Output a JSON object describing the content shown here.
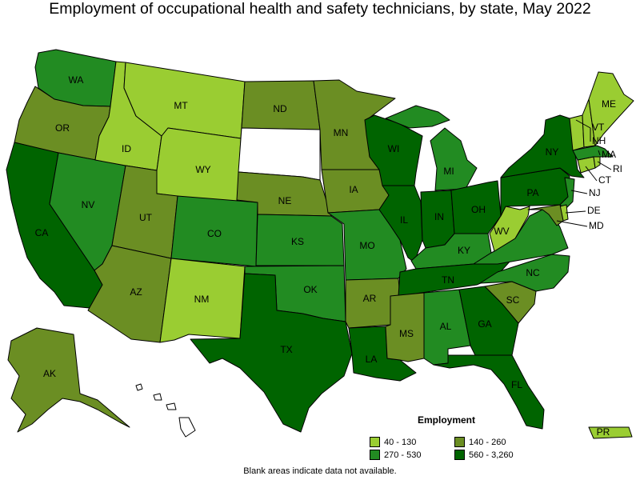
{
  "title": "Employment of occupational health and safety technicians, by state, May 2022",
  "footnote": "Blank areas indicate data not available.",
  "legend": {
    "title": "Employment",
    "items": [
      {
        "label": "40 - 130",
        "color": "#9acd32"
      },
      {
        "label": "140 - 260",
        "color": "#6b8e23"
      },
      {
        "label": "270 - 530",
        "color": "#228b22"
      },
      {
        "label": "560 - 3,260",
        "color": "#006400"
      }
    ]
  },
  "no_data_color": "#ffffff",
  "states": {
    "WA": {
      "label": "WA",
      "bin": "270 - 530"
    },
    "OR": {
      "label": "OR",
      "bin": "140 - 260"
    },
    "CA": {
      "label": "CA",
      "bin": "560 - 3,260"
    },
    "NV": {
      "label": "NV",
      "bin": "270 - 530"
    },
    "ID": {
      "label": "ID",
      "bin": "40 - 130"
    },
    "MT": {
      "label": "MT",
      "bin": "40 - 130"
    },
    "WY": {
      "label": "WY",
      "bin": "40 - 130"
    },
    "UT": {
      "label": "UT",
      "bin": "140 - 260"
    },
    "AZ": {
      "label": "AZ",
      "bin": "140 - 260"
    },
    "CO": {
      "label": "CO",
      "bin": "270 - 530"
    },
    "NM": {
      "label": "NM",
      "bin": "40 - 130"
    },
    "ND": {
      "label": "ND",
      "bin": "140 - 260"
    },
    "SD": {
      "label": "",
      "bin": null
    },
    "NE": {
      "label": "NE",
      "bin": "140 - 260"
    },
    "KS": {
      "label": "KS",
      "bin": "270 - 530"
    },
    "OK": {
      "label": "OK",
      "bin": "270 - 530"
    },
    "TX": {
      "label": "TX",
      "bin": "560 - 3,260"
    },
    "MN": {
      "label": "MN",
      "bin": "140 - 260"
    },
    "IA": {
      "label": "IA",
      "bin": "140 - 260"
    },
    "MO": {
      "label": "MO",
      "bin": "270 - 530"
    },
    "AR": {
      "label": "AR",
      "bin": "140 - 260"
    },
    "LA": {
      "label": "LA",
      "bin": "560 - 3,260"
    },
    "WI": {
      "label": "WI",
      "bin": "560 - 3,260"
    },
    "IL": {
      "label": "IL",
      "bin": "560 - 3,260"
    },
    "MI": {
      "label": "MI",
      "bin": "270 - 530"
    },
    "IN": {
      "label": "IN",
      "bin": "560 - 3,260"
    },
    "OH": {
      "label": "OH",
      "bin": "560 - 3,260"
    },
    "KY": {
      "label": "KY",
      "bin": "270 - 530"
    },
    "TN": {
      "label": "TN",
      "bin": "560 - 3,260"
    },
    "MS": {
      "label": "MS",
      "bin": "140 - 260"
    },
    "AL": {
      "label": "AL",
      "bin": "270 - 530"
    },
    "GA": {
      "label": "GA",
      "bin": "560 - 3,260"
    },
    "FL": {
      "label": "FL",
      "bin": "560 - 3,260"
    },
    "SC": {
      "label": "SC",
      "bin": "140 - 260"
    },
    "NC": {
      "label": "NC",
      "bin": "270 - 530"
    },
    "VA": {
      "label": "",
      "bin": "270 - 530"
    },
    "WV": {
      "label": "WV",
      "bin": "40 - 130"
    },
    "PA": {
      "label": "PA",
      "bin": "560 - 3,260"
    },
    "NY": {
      "label": "NY",
      "bin": "560 - 3,260"
    },
    "NJ": {
      "label": "NJ",
      "bin": "270 - 530"
    },
    "DE": {
      "label": "DE",
      "bin": "40 - 130"
    },
    "MD": {
      "label": "MD",
      "bin": "140 - 260"
    },
    "CT": {
      "label": "CT",
      "bin": "40 - 130"
    },
    "RI": {
      "label": "RI",
      "bin": "40 - 130"
    },
    "MA": {
      "label": "MA",
      "bin": "270 - 530"
    },
    "VT": {
      "label": "VT",
      "bin": "40 - 130"
    },
    "NH": {
      "label": "NH",
      "bin": "40 - 130"
    },
    "ME": {
      "label": "ME",
      "bin": "40 - 130"
    },
    "AK": {
      "label": "AK",
      "bin": "140 - 260"
    },
    "HI": {
      "label": "",
      "bin": null
    },
    "PR": {
      "label": "PR",
      "bin": "40 - 130"
    }
  }
}
